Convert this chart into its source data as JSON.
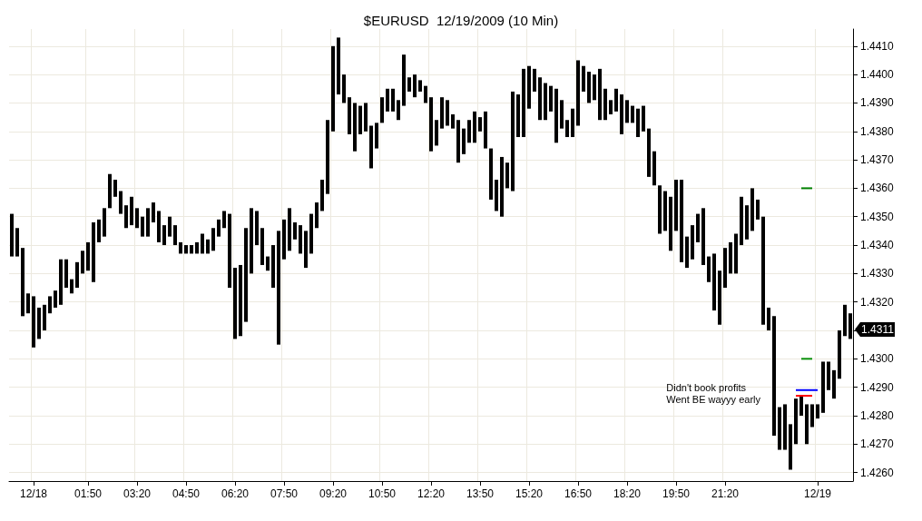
{
  "chart_data": {
    "type": "bar",
    "title": "$EURUSD  12/19/2009 (10 Min)",
    "categories": [
      null,
      null,
      null,
      null,
      "12/18",
      null,
      null,
      null,
      null,
      null,
      null,
      null,
      null,
      null,
      "01:50",
      null,
      null,
      null,
      null,
      null,
      null,
      null,
      null,
      "03:20",
      null,
      null,
      null,
      null,
      null,
      null,
      null,
      null,
      "04:50",
      null,
      null,
      null,
      null,
      null,
      null,
      null,
      null,
      "06:20",
      null,
      null,
      null,
      null,
      null,
      null,
      null,
      null,
      "07:50",
      null,
      null,
      null,
      null,
      null,
      null,
      null,
      null,
      "09:20",
      null,
      null,
      null,
      null,
      null,
      null,
      null,
      null,
      "10:50",
      null,
      null,
      null,
      null,
      null,
      null,
      null,
      null,
      "12:20",
      null,
      null,
      null,
      null,
      null,
      null,
      null,
      null,
      "13:50",
      null,
      null,
      null,
      null,
      null,
      null,
      null,
      null,
      "15:20",
      null,
      null,
      null,
      null,
      null,
      null,
      null,
      null,
      "16:50",
      null,
      null,
      null,
      null,
      null,
      null,
      null,
      null,
      "18:20",
      null,
      null,
      null,
      null,
      null,
      null,
      null,
      null,
      "19:50",
      null,
      null,
      null,
      null,
      null,
      null,
      null,
      null,
      "21:20",
      null,
      null,
      null,
      null,
      null,
      null,
      null,
      null,
      null,
      null,
      null,
      null,
      null,
      null,
      null,
      null,
      "12/19",
      null,
      null,
      null,
      null,
      null,
      null
    ],
    "series": [
      {
        "color": "#000000",
        "base": [
          1.4336,
          1.4336,
          1.4315,
          1.4316,
          1.4304,
          1.4307,
          1.431,
          1.4316,
          1.4318,
          1.4319,
          1.4325,
          1.4323,
          1.4325,
          1.433,
          1.4331,
          1.4327,
          1.4341,
          1.4343,
          1.4353,
          1.4357,
          1.4351,
          1.4346,
          1.4347,
          1.4346,
          1.4343,
          1.4343,
          1.4348,
          1.4341,
          1.434,
          1.4343,
          1.434,
          1.4337,
          1.4337,
          1.4337,
          1.4337,
          1.4337,
          1.4337,
          1.4338,
          1.4343,
          1.4346,
          1.4325,
          1.4307,
          1.4308,
          1.4313,
          1.433,
          1.434,
          1.4333,
          1.4331,
          1.4325,
          1.4305,
          1.4335,
          1.4338,
          1.4342,
          1.4337,
          1.4332,
          1.4337,
          1.4346,
          1.4352,
          1.4358,
          1.438,
          1.4393,
          1.439,
          1.4379,
          1.4373,
          1.4379,
          1.438,
          1.4367,
          1.4374,
          1.4383,
          1.4387,
          1.4387,
          1.4384,
          1.4389,
          1.4394,
          1.4392,
          1.4394,
          1.439,
          1.4373,
          1.4375,
          1.4381,
          1.4382,
          1.4381,
          1.4369,
          1.4372,
          1.4376,
          1.4376,
          1.438,
          1.4374,
          1.4356,
          1.4352,
          1.435,
          1.436,
          1.4359,
          1.4378,
          1.4378,
          1.4388,
          1.4394,
          1.4384,
          1.4384,
          1.4387,
          1.4376,
          1.4381,
          1.4378,
          1.4378,
          1.4382,
          1.4394,
          1.439,
          1.4391,
          1.4384,
          1.4384,
          1.4386,
          1.4387,
          1.4379,
          1.4383,
          1.4383,
          1.4378,
          1.438,
          1.4364,
          1.4361,
          1.4344,
          1.4345,
          1.4338,
          1.4345,
          1.4334,
          1.4332,
          1.4335,
          1.4341,
          1.4333,
          1.4327,
          1.4317,
          1.4312,
          1.4325,
          1.433,
          1.433,
          1.434,
          1.4342,
          1.4345,
          1.4349,
          1.4312,
          1.431,
          1.4273,
          1.4268,
          1.4268,
          1.4261,
          1.427,
          1.428,
          1.427,
          1.4276,
          1.4279,
          1.4281,
          1.4289,
          1.4286,
          1.4293,
          1.4308,
          1.4307
        ],
        "values": [
          0.0015,
          0.001,
          0.0024,
          0.0007,
          0.0018,
          0.0011,
          0.0009,
          0.0006,
          0.0006,
          0.0016,
          0.001,
          0.0005,
          0.0009,
          0.0008,
          0.001,
          0.0021,
          0.0008,
          0.001,
          0.0012,
          0.0006,
          0.0008,
          0.0008,
          0.001,
          0.0007,
          0.0007,
          0.001,
          0.0007,
          0.0011,
          0.0007,
          0.0007,
          0.0007,
          0.0004,
          0.0003,
          0.0003,
          0.0004,
          0.0007,
          0.0005,
          0.0008,
          0.0006,
          0.0006,
          0.0026,
          0.0025,
          0.0025,
          0.0033,
          0.0023,
          0.0012,
          0.0013,
          0.0005,
          0.0015,
          0.004,
          0.0014,
          0.0015,
          0.0006,
          0.001,
          0.0013,
          0.0014,
          0.0009,
          0.0011,
          0.0026,
          0.003,
          0.002,
          0.001,
          0.0013,
          0.0017,
          0.001,
          0.001,
          0.0015,
          0.0009,
          0.0009,
          0.0008,
          0.0008,
          0.0007,
          0.0018,
          0.0005,
          0.0008,
          0.0004,
          0.0006,
          0.0019,
          0.0009,
          0.0011,
          0.0009,
          0.0005,
          0.0015,
          0.0009,
          0.0008,
          0.0011,
          0.0005,
          0.0013,
          0.0018,
          0.0011,
          0.0021,
          0.0009,
          0.0035,
          0.0015,
          0.0024,
          0.0015,
          0.0008,
          0.0015,
          0.0013,
          0.0009,
          0.0019,
          0.001,
          0.0006,
          0.001,
          0.0023,
          0.0009,
          0.0011,
          0.0009,
          0.0018,
          0.0011,
          0.0005,
          0.0008,
          0.0014,
          0.0008,
          0.0006,
          0.001,
          0.0009,
          0.0017,
          0.0012,
          0.0017,
          0.0014,
          0.0019,
          0.0018,
          0.0029,
          0.0011,
          0.0012,
          0.001,
          0.002,
          0.0009,
          0.002,
          0.0019,
          0.0014,
          0.0011,
          0.0014,
          0.0017,
          0.0012,
          0.0015,
          0.0007,
          0.0038,
          0.0008,
          0.0042,
          0.0015,
          0.0016,
          0.0016,
          0.0016,
          0.0007,
          0.0014,
          0.0008,
          0.0005,
          0.0018,
          0.001,
          0.001,
          0.0017,
          0.0011,
          0.0009
        ]
      },
      {
        "type": "line",
        "color": "#008000",
        "values": [
          null,
          null,
          null,
          null,
          null,
          null,
          null,
          null,
          null,
          null,
          null,
          null,
          null,
          null,
          null,
          null,
          null,
          null,
          null,
          null,
          null,
          null,
          null,
          null,
          null,
          null,
          null,
          null,
          null,
          null,
          null,
          null,
          null,
          null,
          null,
          null,
          null,
          null,
          null,
          null,
          null,
          null,
          null,
          null,
          null,
          null,
          null,
          null,
          null,
          null,
          null,
          null,
          null,
          null,
          null,
          null,
          null,
          null,
          null,
          null,
          null,
          null,
          null,
          null,
          null,
          null,
          null,
          null,
          null,
          null,
          null,
          null,
          null,
          null,
          null,
          null,
          null,
          null,
          null,
          null,
          null,
          null,
          null,
          null,
          null,
          null,
          null,
          null,
          null,
          null,
          null,
          null,
          null,
          null,
          null,
          null,
          null,
          null,
          null,
          null,
          null,
          null,
          null,
          null,
          null,
          null,
          null,
          null,
          null,
          null,
          null,
          null,
          null,
          null,
          null,
          null,
          null,
          null,
          null,
          null,
          null,
          null,
          null,
          null,
          null,
          null,
          null,
          null,
          null,
          null,
          null,
          null,
          null,
          null,
          null,
          null,
          null,
          null,
          null,
          null,
          null,
          null,
          null,
          null,
          null,
          1.436,
          1.436,
          1.436,
          null,
          null,
          null,
          null,
          null,
          null,
          null
        ]
      },
      {
        "type": "line",
        "color": "#0a8f0a",
        "values": [
          null,
          null,
          null,
          null,
          null,
          null,
          null,
          null,
          null,
          null,
          null,
          null,
          null,
          null,
          null,
          null,
          null,
          null,
          null,
          null,
          null,
          null,
          null,
          null,
          null,
          null,
          null,
          null,
          null,
          null,
          null,
          null,
          null,
          null,
          null,
          null,
          null,
          null,
          null,
          null,
          null,
          null,
          null,
          null,
          null,
          null,
          null,
          null,
          null,
          null,
          null,
          null,
          null,
          null,
          null,
          null,
          null,
          null,
          null,
          null,
          null,
          null,
          null,
          null,
          null,
          null,
          null,
          null,
          null,
          null,
          null,
          null,
          null,
          null,
          null,
          null,
          null,
          null,
          null,
          null,
          null,
          null,
          null,
          null,
          null,
          null,
          null,
          null,
          null,
          null,
          null,
          null,
          null,
          null,
          null,
          null,
          null,
          null,
          null,
          null,
          null,
          null,
          null,
          null,
          null,
          null,
          null,
          null,
          null,
          null,
          null,
          null,
          null,
          null,
          null,
          null,
          null,
          null,
          null,
          null,
          null,
          null,
          null,
          null,
          null,
          null,
          null,
          null,
          null,
          null,
          null,
          null,
          null,
          null,
          null,
          null,
          null,
          null,
          null,
          null,
          null,
          null,
          null,
          null,
          null,
          1.43,
          1.43,
          1.43,
          null,
          null,
          null,
          null,
          null,
          null,
          null
        ]
      },
      {
        "type": "line",
        "color": "#0000ff",
        "values": [
          null,
          null,
          null,
          null,
          null,
          null,
          null,
          null,
          null,
          null,
          null,
          null,
          null,
          null,
          null,
          null,
          null,
          null,
          null,
          null,
          null,
          null,
          null,
          null,
          null,
          null,
          null,
          null,
          null,
          null,
          null,
          null,
          null,
          null,
          null,
          null,
          null,
          null,
          null,
          null,
          null,
          null,
          null,
          null,
          null,
          null,
          null,
          null,
          null,
          null,
          null,
          null,
          null,
          null,
          null,
          null,
          null,
          null,
          null,
          null,
          null,
          null,
          null,
          null,
          null,
          null,
          null,
          null,
          null,
          null,
          null,
          null,
          null,
          null,
          null,
          null,
          null,
          null,
          null,
          null,
          null,
          null,
          null,
          null,
          null,
          null,
          null,
          null,
          null,
          null,
          null,
          null,
          null,
          null,
          null,
          null,
          null,
          null,
          null,
          null,
          null,
          null,
          null,
          null,
          null,
          null,
          null,
          null,
          null,
          null,
          null,
          null,
          null,
          null,
          null,
          null,
          null,
          null,
          null,
          null,
          null,
          null,
          null,
          null,
          null,
          null,
          null,
          null,
          null,
          null,
          null,
          null,
          null,
          null,
          null,
          null,
          null,
          null,
          null,
          null,
          null,
          null,
          null,
          null,
          1.4289,
          1.4289,
          1.4289,
          1.4289,
          1.4289,
          null,
          null,
          null,
          null,
          null,
          null
        ]
      },
      {
        "type": "line",
        "color": "#ff0000",
        "values": [
          null,
          null,
          null,
          null,
          null,
          null,
          null,
          null,
          null,
          null,
          null,
          null,
          null,
          null,
          null,
          null,
          null,
          null,
          null,
          null,
          null,
          null,
          null,
          null,
          null,
          null,
          null,
          null,
          null,
          null,
          null,
          null,
          null,
          null,
          null,
          null,
          null,
          null,
          null,
          null,
          null,
          null,
          null,
          null,
          null,
          null,
          null,
          null,
          null,
          null,
          null,
          null,
          null,
          null,
          null,
          null,
          null,
          null,
          null,
          null,
          null,
          null,
          null,
          null,
          null,
          null,
          null,
          null,
          null,
          null,
          null,
          null,
          null,
          null,
          null,
          null,
          null,
          null,
          null,
          null,
          null,
          null,
          null,
          null,
          null,
          null,
          null,
          null,
          null,
          null,
          null,
          null,
          null,
          null,
          null,
          null,
          null,
          null,
          null,
          null,
          null,
          null,
          null,
          null,
          null,
          null,
          null,
          null,
          null,
          null,
          null,
          null,
          null,
          null,
          null,
          null,
          null,
          null,
          null,
          null,
          null,
          null,
          null,
          null,
          null,
          null,
          null,
          null,
          null,
          null,
          null,
          null,
          null,
          null,
          null,
          null,
          null,
          null,
          null,
          null,
          null,
          null,
          null,
          null,
          1.4287,
          1.4287,
          1.4287,
          1.4287,
          null,
          null,
          null,
          null,
          null,
          null,
          null
        ]
      }
    ],
    "ylim": [
      1.4257,
      1.4416
    ],
    "yticks": [
      {
        "value": 1.426,
        "label": "1.4260"
      },
      {
        "value": 1.427,
        "label": "1.4270"
      },
      {
        "value": 1.428,
        "label": "1.4280"
      },
      {
        "value": 1.429,
        "label": "1.4290"
      },
      {
        "value": 1.43,
        "label": "1.4300"
      },
      {
        "value": 1.431,
        "label": null
      },
      {
        "value": 1.432,
        "label": "1.4320"
      },
      {
        "value": 1.433,
        "label": "1.4330"
      },
      {
        "value": 1.434,
        "label": "1.4340"
      },
      {
        "value": 1.435,
        "label": "1.4350"
      },
      {
        "value": 1.436,
        "label": "1.4360"
      },
      {
        "value": 1.437,
        "label": "1.4370"
      },
      {
        "value": 1.438,
        "label": "1.4380"
      },
      {
        "value": 1.439,
        "label": "1.4390"
      },
      {
        "value": 1.44,
        "label": "1.4400"
      },
      {
        "value": 1.441,
        "label": "1.4410"
      }
    ],
    "grid": true,
    "annotations": [
      "Didn't book profits\nWent BE wayyy early",
      "1.4311"
    ]
  }
}
